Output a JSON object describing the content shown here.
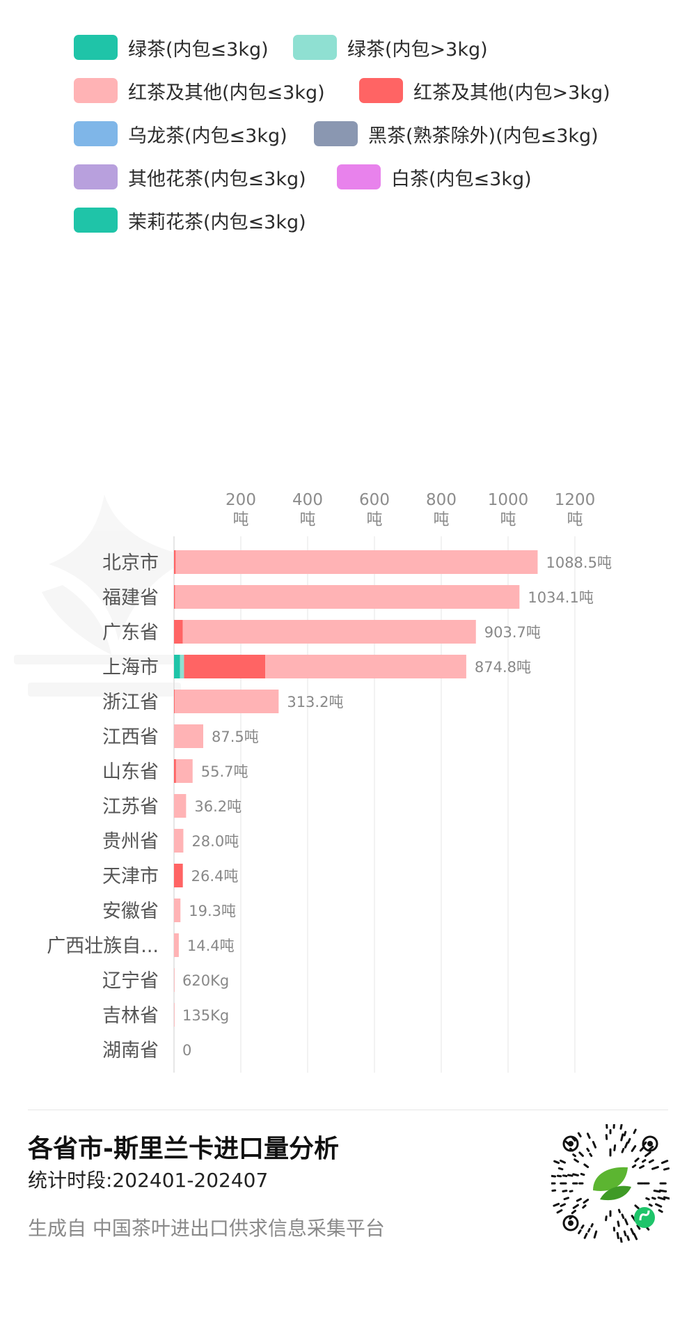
{
  "legend": [
    {
      "label": "绿茶(内包≤3kg)",
      "color": "#1fc4a8"
    },
    {
      "label": "绿茶(内包>3kg)",
      "color": "#8fe0d2"
    },
    {
      "label": "红茶及其他(内包≤3kg)",
      "color": "#ffb3b5"
    },
    {
      "label": "红茶及其他(内包>3kg)",
      "color": "#ff6464"
    },
    {
      "label": "乌龙茶(内包≤3kg)",
      "color": "#7fb6e8"
    },
    {
      "label": "黑茶(熟茶除外)(内包≤3kg)",
      "color": "#8a97b1"
    },
    {
      "label": "其他花茶(内包≤3kg)",
      "color": "#b8a0dd"
    },
    {
      "label": "白茶(内包≤3kg)",
      "color": "#e882ec"
    },
    {
      "label": "茉莉花茶(内包≤3kg)",
      "color": "#1fc4a8"
    }
  ],
  "chart_data": {
    "type": "bar",
    "orientation": "horizontal",
    "stacked": true,
    "unit": "吨",
    "x_ticks": [
      200,
      400,
      600,
      800,
      1000,
      1200
    ],
    "x_tick_unit": "吨",
    "xlim": [
      0,
      1300
    ],
    "categories": [
      "北京市",
      "福建省",
      "广东省",
      "上海市",
      "浙江省",
      "江西省",
      "山东省",
      "江苏省",
      "贵州省",
      "天津市",
      "安徽省",
      "广西壮族自...",
      "辽宁省",
      "吉林省",
      "湖南省"
    ],
    "totals_label": [
      "1088.5吨",
      "1034.1吨",
      "903.7吨",
      "874.8吨",
      "313.2吨",
      "87.5吨",
      "55.7吨",
      "36.2吨",
      "28.0吨",
      "26.4吨",
      "19.3吨",
      "14.4吨",
      "620Kg",
      "135Kg",
      "0"
    ],
    "series": [
      {
        "name": "绿茶(内包≤3kg)",
        "color": "#1fc4a8",
        "values": [
          0,
          0,
          0,
          18,
          0,
          0,
          0,
          0,
          0,
          0,
          0,
          0,
          0,
          0,
          0
        ]
      },
      {
        "name": "绿茶(内包>3kg)",
        "color": "#8fe0d2",
        "values": [
          0,
          0,
          0,
          12,
          0,
          0,
          0,
          0,
          0,
          0,
          0,
          0,
          0,
          0,
          0
        ]
      },
      {
        "name": "红茶及其他(内包>3kg)",
        "color": "#ff6464",
        "values": [
          5,
          3,
          26,
          243,
          2,
          0,
          6,
          0,
          0,
          26.4,
          0,
          0,
          0,
          0,
          0
        ]
      },
      {
        "name": "红茶及其他(内包≤3kg)",
        "color": "#ffb3b5",
        "values": [
          1083.5,
          1031.1,
          877.7,
          601.8,
          311.2,
          87.5,
          49.7,
          36.2,
          28.0,
          0,
          19.3,
          14.4,
          0.62,
          0.135,
          0
        ]
      }
    ]
  },
  "footer": {
    "title": "各省市-斯里兰卡进口量分析",
    "period": "统计时段:202401-202407",
    "source": "生成自 中国茶叶进出口供求信息采集平台"
  }
}
